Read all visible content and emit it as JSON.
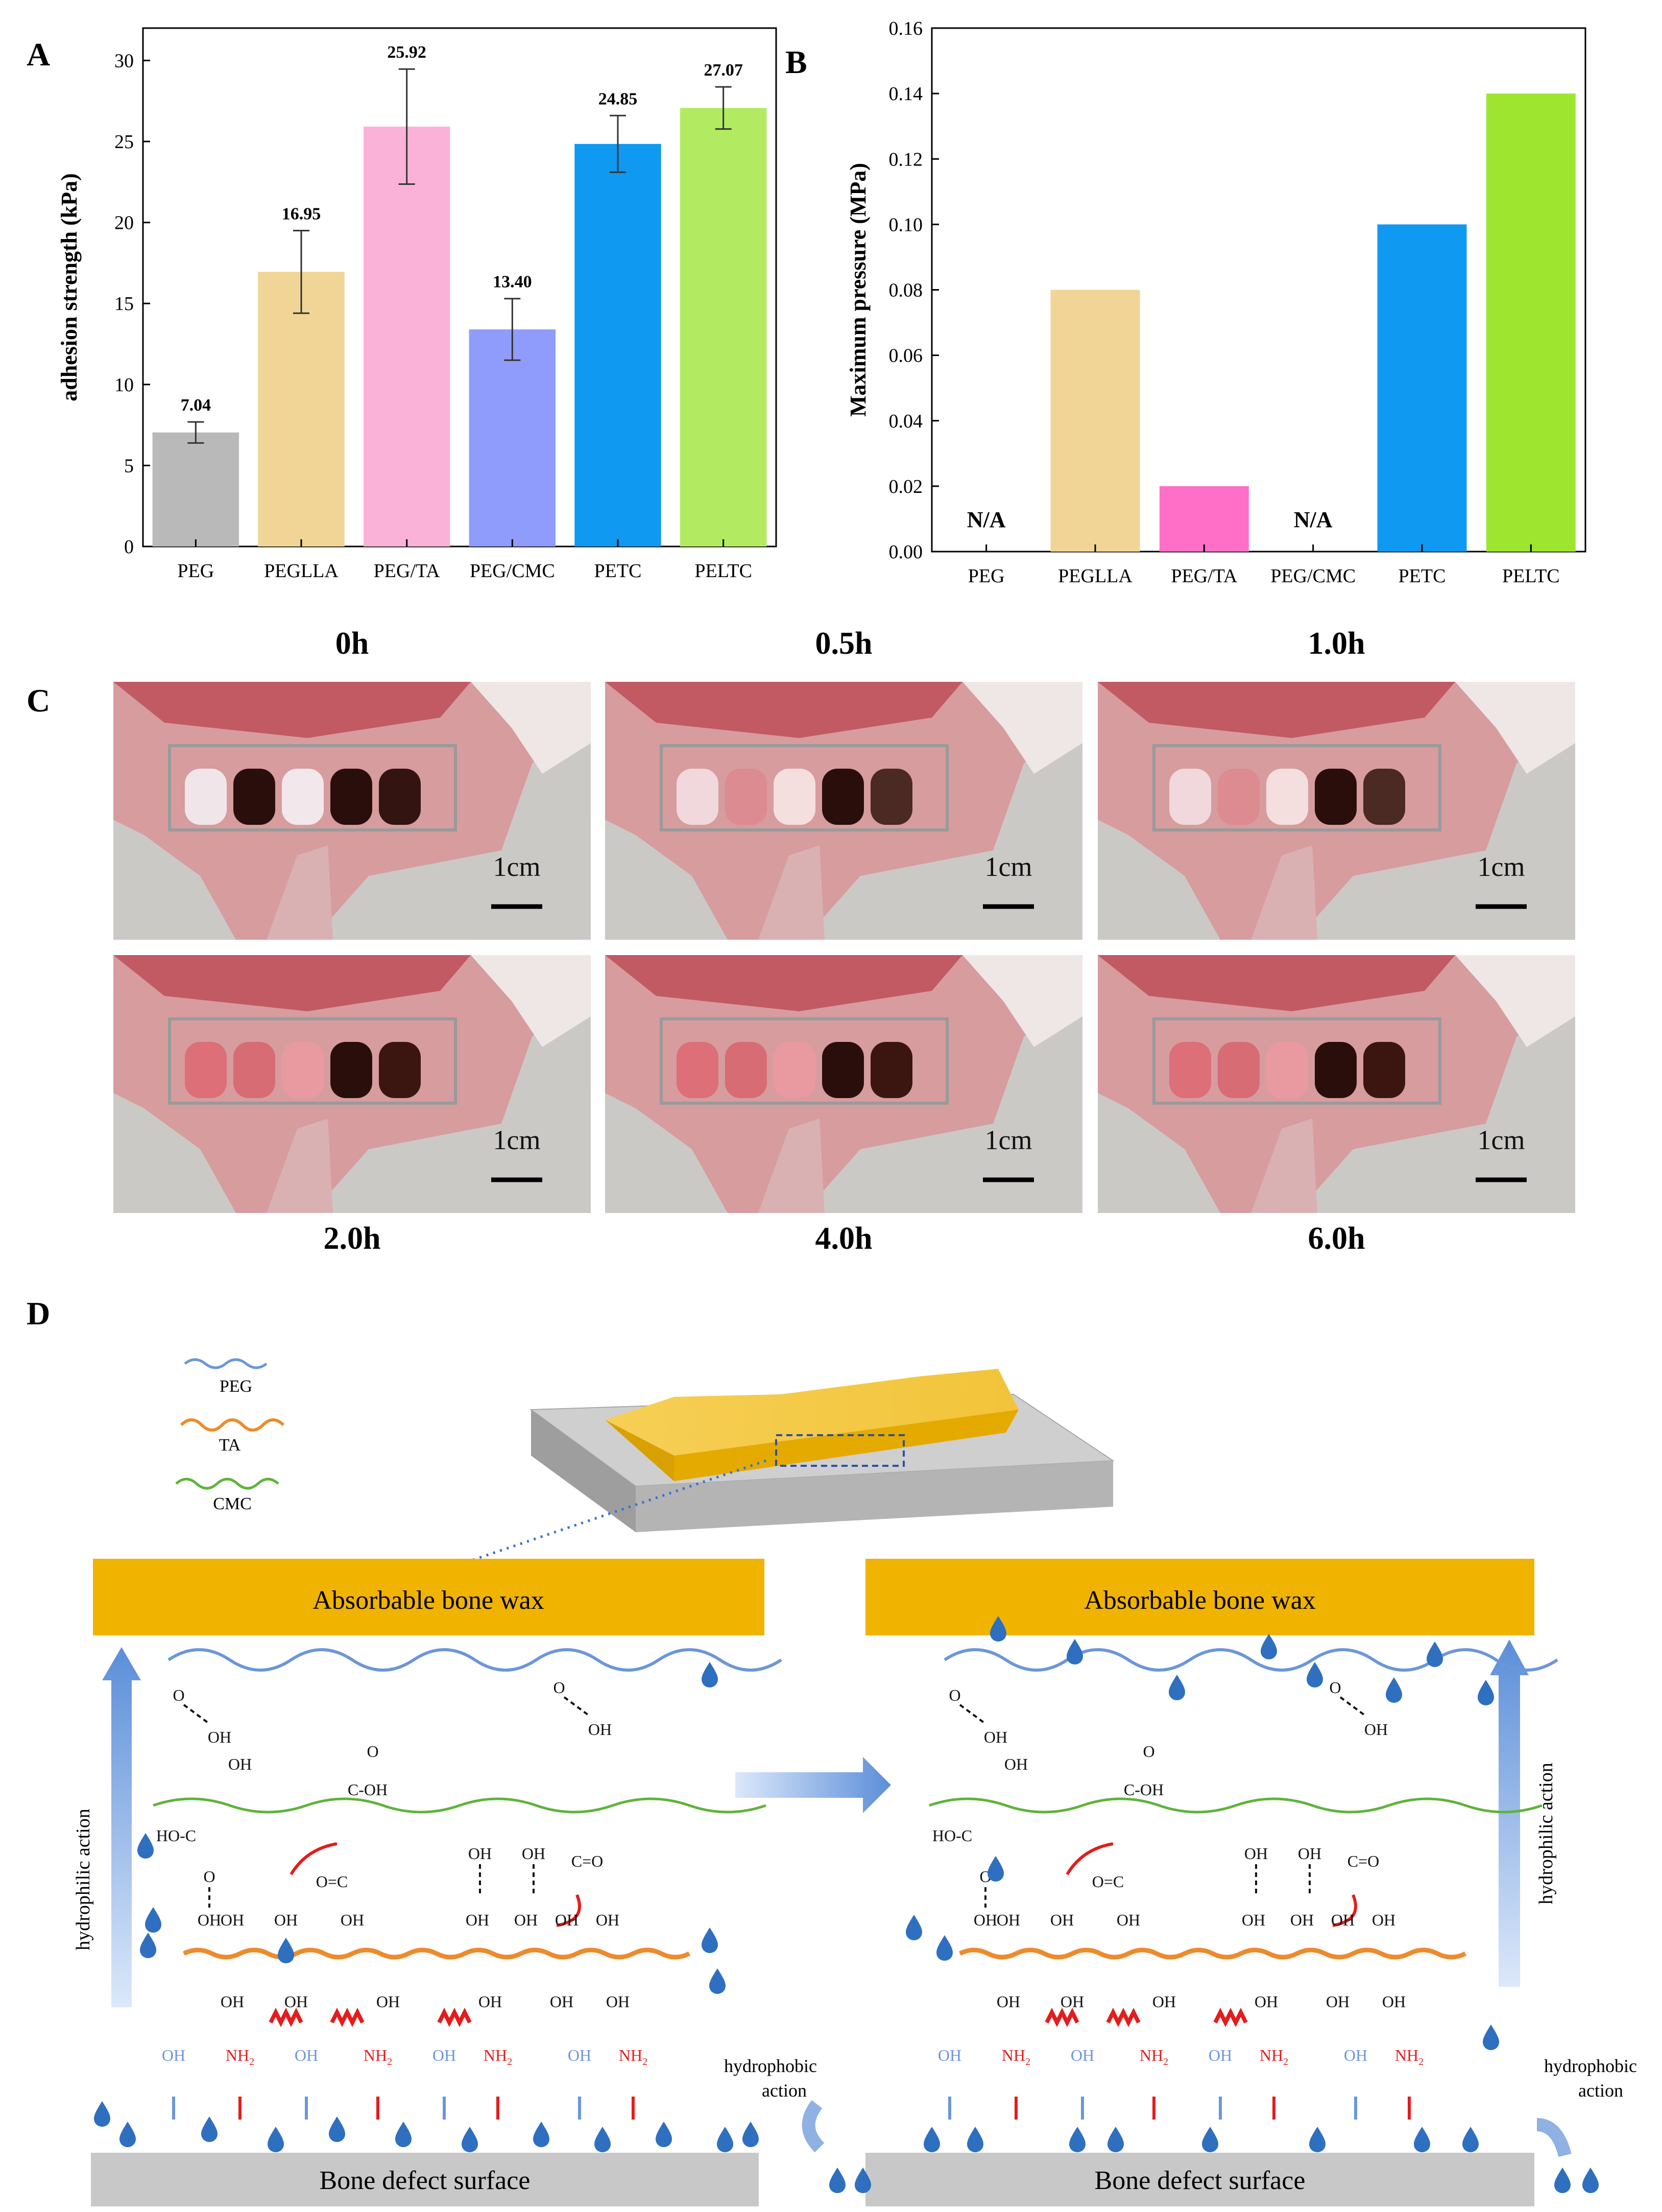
{
  "panels": {
    "a": "A",
    "b": "B",
    "c": "C",
    "d": "D"
  },
  "chart_data": [
    {
      "type": "bar",
      "id": "A",
      "title": "",
      "xlabel": "",
      "ylabel": "adhesion strength (kPa)",
      "ylim": [
        0,
        32
      ],
      "yticks": [
        "0",
        "5",
        "10",
        "15",
        "20",
        "25",
        "30"
      ],
      "categories": [
        "PEG",
        "PEGLLA",
        "PEG/TA",
        "PEG/CMC",
        "PETC",
        "PELTC"
      ],
      "values": [
        7.04,
        16.95,
        25.92,
        13.4,
        24.85,
        27.07
      ],
      "value_labels": [
        "7.04",
        "16.95",
        "25.92",
        "13.40",
        "24.85",
        "27.07"
      ],
      "errors": [
        0.65,
        2.55,
        3.55,
        1.9,
        1.75,
        1.3
      ],
      "colors": [
        "#b9b9b9",
        "#f0d596",
        "#fab2d8",
        "#8f9cfb",
        "#0f99f0",
        "#b2ea62"
      ]
    },
    {
      "type": "bar",
      "id": "B",
      "title": "",
      "xlabel": "",
      "ylabel": "Maximum pressure (MPa)",
      "ylim": [
        0,
        0.16
      ],
      "yticks": [
        "0.00",
        "0.02",
        "0.04",
        "0.06",
        "0.08",
        "0.10",
        "0.12",
        "0.14",
        "0.16"
      ],
      "categories": [
        "PEG",
        "PEGLLA",
        "PEG/TA",
        "PEG/CMC",
        "PETC",
        "PELTC"
      ],
      "values": [
        0,
        0.08,
        0.02,
        0,
        0.1,
        0.14
      ],
      "annotations": [
        "N/A",
        "",
        "",
        "N/A",
        "",
        ""
      ],
      "colors": [
        "#b9b9b9",
        "#f0d596",
        "#ff6fc8",
        "#8f9cfb",
        "#0f99f0",
        "#9ee530"
      ]
    }
  ],
  "photos": {
    "scale_label": "1cm",
    "times_top": [
      "0h",
      "0.5h",
      "1.0h"
    ],
    "times_bottom": [
      "2.0h",
      "4.0h",
      "6.0h"
    ]
  },
  "diagram": {
    "legend": [
      "PEG",
      "TA",
      "CMC"
    ],
    "wax_label": "Absorbable bone wax",
    "surface_label": "Bone defect surface",
    "hydrophilic": "hydrophilic action",
    "hydrophobic_1": "hydrophobic",
    "hydrophobic_2": "action",
    "chem": {
      "oh": "OH",
      "o": "O",
      "cooh": "C-OH",
      "hoc": "HO-C",
      "co_right": "O=C",
      "co_left": "C=O",
      "nh2": "NH",
      "sub2": "2"
    }
  },
  "colors": {
    "peg": "#6b96d9",
    "ta": "#ed8b2c",
    "cmc": "#5fb33b",
    "red": "#e41c1c",
    "wax": "#f0b400",
    "surface": "#c8c8c8",
    "water": "#2f6fc0"
  }
}
